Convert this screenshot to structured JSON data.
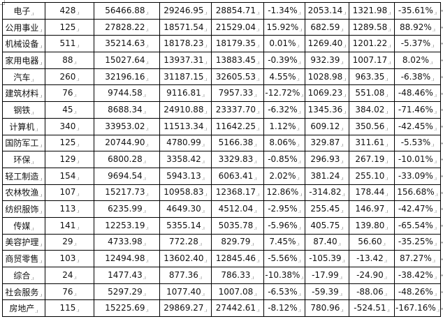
{
  "table": {
    "rows": [
      [
        "电子",
        "428",
        "56466.88",
        "29246.95",
        "28854.71",
        "-1.34%",
        "2053.14",
        "1321.98",
        "-35.61%"
      ],
      [
        "公用事业",
        "125",
        "27828.22",
        "18571.54",
        "21529.04",
        "15.92%",
        "682.59",
        "1289.58",
        "88.92%"
      ],
      [
        "机械设备",
        "511",
        "35214.63",
        "18178.23",
        "18179.35",
        "0.01%",
        "1269.40",
        "1201.22",
        "-5.37%"
      ],
      [
        "家用电器",
        "88",
        "15027.64",
        "13937.31",
        "13883.45",
        "-0.39%",
        "932.39",
        "1007.17",
        "8.02%"
      ],
      [
        "汽车",
        "260",
        "32196.16",
        "31187.15",
        "32605.53",
        "4.55%",
        "1028.98",
        "963.35",
        "-6.38%"
      ],
      [
        "建筑材料",
        "76",
        "9744.58",
        "9116.81",
        "7957.33",
        "-12.72%",
        "1069.23",
        "551.08",
        "-48.46%"
      ],
      [
        "钢铁",
        "45",
        "8688.34",
        "24910.88",
        "23337.70",
        "-6.32%",
        "1345.36",
        "384.02",
        "-71.46%"
      ],
      [
        "计算机",
        "340",
        "33953.02",
        "11513.34",
        "11642.25",
        "1.12%",
        "609.12",
        "350.56",
        "-42.45%"
      ],
      [
        "国防军工",
        "125",
        "20744.90",
        "4780.99",
        "5166.38",
        "8.06%",
        "329.87",
        "311.61",
        "-5.53%"
      ],
      [
        "环保",
        "129",
        "6800.28",
        "3358.42",
        "3329.83",
        "-0.85%",
        "296.93",
        "267.19",
        "-10.01%"
      ],
      [
        "轻工制造",
        "154",
        "9694.54",
        "5943.13",
        "6063.41",
        "2.02%",
        "381.24",
        "255.10",
        "-33.09%"
      ],
      [
        "农林牧渔",
        "107",
        "15217.73",
        "10958.83",
        "12368.17",
        "12.86%",
        "-314.82",
        "178.44",
        "156.68%"
      ],
      [
        "纺织服饰",
        "113",
        "6235.99",
        "4649.30",
        "4512.04",
        "-2.95%",
        "255.45",
        "146.97",
        "-42.47%"
      ],
      [
        "传媒",
        "141",
        "12253.19",
        "5355.14",
        "5035.78",
        "-5.96%",
        "405.75",
        "139.80",
        "-65.54%"
      ],
      [
        "美容护理",
        "29",
        "4733.98",
        "772.28",
        "829.79",
        "7.45%",
        "87.40",
        "56.60",
        "-35.25%"
      ],
      [
        "商贸零售",
        "103",
        "12494.98",
        "13602.40",
        "12845.46",
        "-5.56%",
        "-105.39",
        "-13.42",
        "87.27%"
      ],
      [
        "综合",
        "24",
        "1477.43",
        "877.36",
        "786.33",
        "-10.38%",
        "-17.99",
        "-24.90",
        "-38.42%"
      ],
      [
        "社会服务",
        "76",
        "5297.29",
        "1077.40",
        "1007.08",
        "-6.53%",
        "-59.39",
        "-88.06",
        "-48.26%"
      ],
      [
        "房地产",
        "115",
        "15225.69",
        "29869.27",
        "27442.61",
        "-8.12%",
        "780.96",
        "-524.51",
        "-167.16%"
      ]
    ]
  }
}
